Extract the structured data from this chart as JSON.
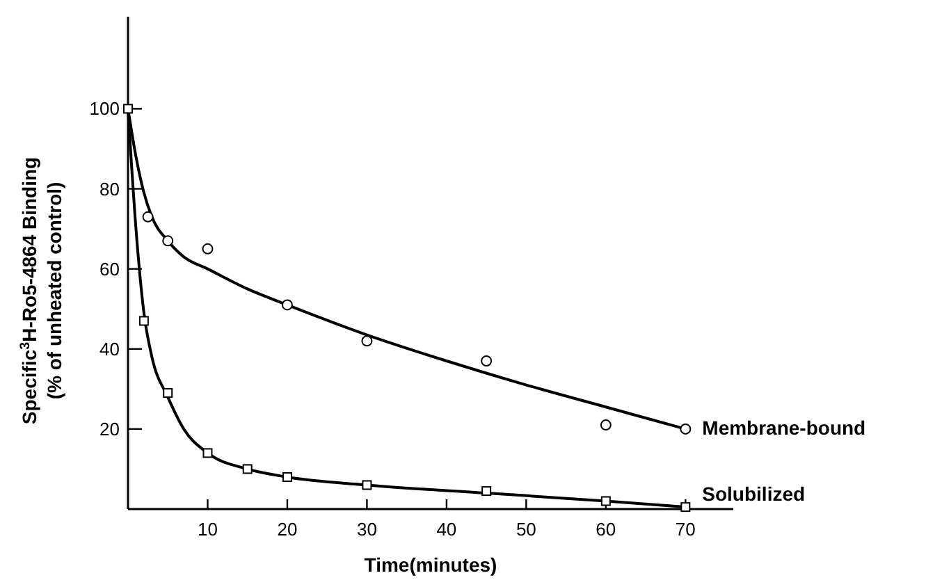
{
  "chart_data": {
    "type": "scatter",
    "xlabel": "Time(minutes)",
    "ylabel": "Specific$^{3}$H-Ro5-4864 Binding\n(% of unheated control)",
    "xlim": [
      0,
      76
    ],
    "ylim": [
      0,
      123
    ],
    "xticks": [
      10,
      20,
      30,
      40,
      50,
      60,
      70
    ],
    "yticks": [
      20,
      40,
      60,
      80,
      100
    ],
    "grid": false,
    "series": [
      {
        "name": "Membrane-bound",
        "marker": "circle",
        "color": "#000000",
        "x": [
          2.5,
          5,
          10,
          20,
          30,
          45,
          60,
          70
        ],
        "values": [
          73,
          67,
          65,
          51,
          42,
          37,
          21,
          20
        ]
      },
      {
        "name": "Solubilized",
        "marker": "square",
        "color": "#000000",
        "x": [
          0,
          2,
          5,
          10,
          15,
          20,
          30,
          45,
          60,
          70
        ],
        "values": [
          100,
          47,
          29,
          14,
          10,
          8,
          6,
          4.5,
          2,
          0.5
        ]
      },
      {
        "type": "line",
        "marker": "none",
        "color": "#000000",
        "x": [
          0,
          1,
          2,
          3,
          5,
          7,
          10,
          15,
          20,
          30,
          40,
          50,
          60,
          70
        ],
        "values": [
          100,
          88,
          79,
          73,
          67,
          63,
          60,
          55,
          51,
          43.5,
          37,
          31,
          25.5,
          20
        ]
      },
      {
        "type": "line",
        "marker": "none",
        "color": "#000000",
        "x": [
          0,
          1,
          2,
          3,
          5,
          7,
          10,
          15,
          20,
          30,
          45,
          60,
          70
        ],
        "values": [
          100,
          70,
          49,
          38,
          28,
          20,
          14,
          10,
          8,
          6,
          4,
          2,
          0.5
        ]
      }
    ]
  }
}
